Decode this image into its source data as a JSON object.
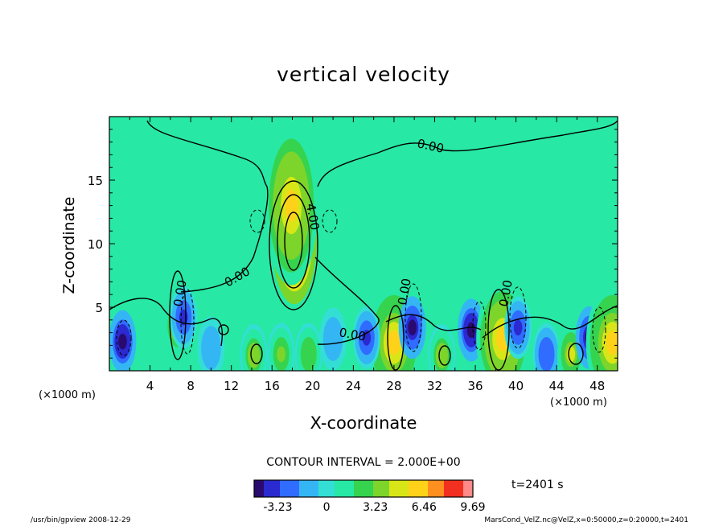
{
  "chart_data": {
    "type": "heatmap",
    "title": "vertical velocity",
    "xlabel": "X-coordinate",
    "ylabel": "Z-coordinate",
    "x_unit": "(×1000 m)",
    "y_unit": "(×1000 m)",
    "xlim": [
      0,
      50
    ],
    "ylim": [
      0,
      20
    ],
    "x_ticks": [
      4,
      8,
      12,
      16,
      20,
      24,
      28,
      32,
      36,
      40,
      44,
      48
    ],
    "y_ticks": [
      5,
      10,
      15
    ],
    "contour_labels": [
      "0.00",
      "0.00",
      "0.00",
      "4.00",
      "0.00",
      "0.00",
      "0.00"
    ],
    "contour_interval": "CONTOUR INTERVAL = 2.000E+00",
    "time": "t=2401 s",
    "colorbar": {
      "min": -4.8,
      "max": 9.69,
      "ticks": [
        "-3.23",
        "0",
        "3.23",
        "6.46",
        "9.69"
      ],
      "tick_values": [
        -3.23,
        0,
        3.23,
        6.46,
        9.69
      ]
    },
    "features": [
      {
        "x": 18.2,
        "z": 10.5,
        "w": 9.69
      },
      {
        "x": 17.9,
        "z": 13.0,
        "w": 6.4
      },
      {
        "x": 6.7,
        "z": 3.6,
        "w": 5.0
      },
      {
        "x": 1.3,
        "z": 2.3,
        "w": -4.6
      },
      {
        "x": 7.3,
        "z": 4.2,
        "w": -3.5
      },
      {
        "x": 14.2,
        "z": 1.2,
        "w": 3.8
      },
      {
        "x": 16.9,
        "z": 1.3,
        "w": 3.2
      },
      {
        "x": 19.6,
        "z": 1.3,
        "w": 3.0
      },
      {
        "x": 28.0,
        "z": 2.2,
        "w": 6.2
      },
      {
        "x": 29.8,
        "z": 3.4,
        "w": -4.4
      },
      {
        "x": 25.3,
        "z": 2.6,
        "w": -3.2
      },
      {
        "x": 32.7,
        "z": 1.2,
        "w": 3.8
      },
      {
        "x": 35.6,
        "z": 3.2,
        "w": -4.6
      },
      {
        "x": 38.7,
        "z": 2.5,
        "w": 6.4
      },
      {
        "x": 40.2,
        "z": 3.4,
        "w": -3.6
      },
      {
        "x": 43.0,
        "z": 1.3,
        "w": -3.0
      },
      {
        "x": 45.4,
        "z": 1.3,
        "w": 4.6
      },
      {
        "x": 47.2,
        "z": 2.6,
        "w": -4.4
      },
      {
        "x": 49.5,
        "z": 2.2,
        "w": 6.2
      },
      {
        "x": 22.0,
        "z": 2.5,
        "w": -1.6
      },
      {
        "x": 10.0,
        "z": 1.8,
        "w": -1.4
      }
    ]
  },
  "footer": {
    "left": "/usr/bin/gpview   2008-12-29",
    "right": "MarsCond_VelZ.nc@VelZ,x=0:50000,z=0:20000,t=2401"
  }
}
